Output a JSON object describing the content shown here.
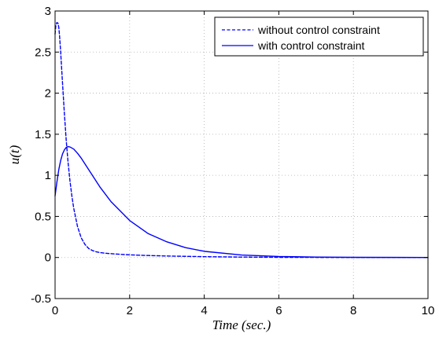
{
  "chart_data": {
    "type": "line",
    "title": "",
    "xlabel": "Time (sec.)",
    "ylabel": "u(t)",
    "xlim": [
      0,
      10
    ],
    "ylim": [
      -0.5,
      3
    ],
    "xticks": [
      0,
      2,
      4,
      6,
      8,
      10
    ],
    "xtick_labels": [
      "0",
      "2",
      "4",
      "6",
      "8",
      "10"
    ],
    "yticks": [
      -0.5,
      0,
      0.5,
      1,
      1.5,
      2,
      2.5,
      3
    ],
    "ytick_labels": [
      "-0.5",
      "0",
      "0.5",
      "1",
      "1.5",
      "2",
      "2.5",
      "3"
    ],
    "grid": true,
    "legend_position": "top-right",
    "line_color": "#0000ff",
    "series": [
      {
        "name": "without control constraint",
        "style": "dashed",
        "x": [
          0,
          0.02,
          0.05,
          0.08,
          0.1,
          0.12,
          0.15,
          0.2,
          0.25,
          0.3,
          0.35,
          0.4,
          0.45,
          0.5,
          0.6,
          0.7,
          0.8,
          0.9,
          1.0,
          1.1,
          1.2,
          1.4,
          1.6,
          1.8,
          2.0,
          2.5,
          3.0,
          4.0,
          5.0,
          6.0,
          8.0,
          10.0
        ],
        "y": [
          2.72,
          2.82,
          2.86,
          2.85,
          2.8,
          2.7,
          2.5,
          2.12,
          1.75,
          1.42,
          1.15,
          0.93,
          0.75,
          0.6,
          0.38,
          0.24,
          0.16,
          0.11,
          0.085,
          0.07,
          0.06,
          0.05,
          0.043,
          0.037,
          0.032,
          0.024,
          0.018,
          0.01,
          0.005,
          0.002,
          0.0,
          0.0
        ]
      },
      {
        "name": "with control constraint",
        "style": "solid",
        "x": [
          0,
          0.05,
          0.1,
          0.15,
          0.2,
          0.25,
          0.3,
          0.35,
          0.4,
          0.5,
          0.6,
          0.7,
          0.8,
          1.0,
          1.2,
          1.5,
          2.0,
          2.5,
          3.0,
          3.5,
          4.0,
          5.0,
          6.0,
          7.0,
          8.0,
          10.0
        ],
        "y": [
          0.75,
          0.92,
          1.07,
          1.18,
          1.26,
          1.31,
          1.34,
          1.35,
          1.345,
          1.32,
          1.27,
          1.21,
          1.14,
          1.0,
          0.86,
          0.68,
          0.45,
          0.29,
          0.19,
          0.12,
          0.075,
          0.03,
          0.012,
          0.005,
          0.002,
          0.0
        ]
      }
    ]
  }
}
